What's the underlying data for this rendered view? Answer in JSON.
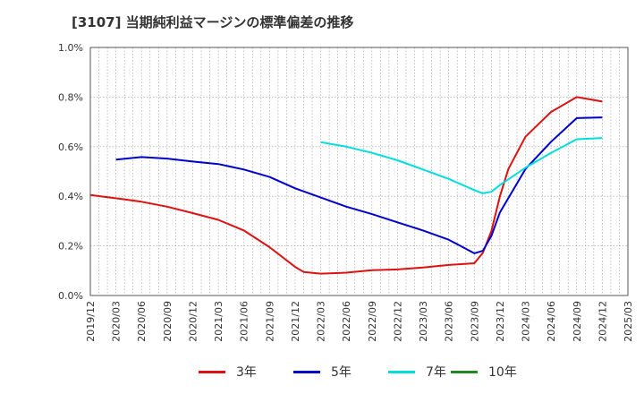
{
  "title": "[3107]  当期純利益マージンの標準偏差の推移",
  "chart_data": {
    "type": "line",
    "title": "[3107]  当期純利益マージンの標準偏差の推移",
    "xlabel": "",
    "ylabel": "",
    "ylim": [
      0,
      1.0
    ],
    "y_ticks": [
      "0.0%",
      "0.2%",
      "0.4%",
      "0.6%",
      "0.8%",
      "1.0%"
    ],
    "y_tick_values": [
      0,
      0.2,
      0.4,
      0.6,
      0.8,
      1.0
    ],
    "x_ticks": [
      "2019/12",
      "2020/03",
      "2020/06",
      "2020/09",
      "2020/12",
      "2021/03",
      "2021/06",
      "2021/09",
      "2021/12",
      "2022/03",
      "2022/06",
      "2022/09",
      "2022/12",
      "2023/03",
      "2023/06",
      "2023/09",
      "2023/12",
      "2024/03",
      "2024/06",
      "2024/09",
      "2024/12",
      "2025/03"
    ],
    "grid": true,
    "legend_position": "bottom",
    "series": [
      {
        "name": "3年",
        "color": "#dd1111",
        "points": [
          [
            "2019/12",
            0.405
          ],
          [
            "2020/03",
            0.392
          ],
          [
            "2020/06",
            0.378
          ],
          [
            "2020/09",
            0.358
          ],
          [
            "2020/12",
            0.332
          ],
          [
            "2021/03",
            0.305
          ],
          [
            "2021/06",
            0.262
          ],
          [
            "2021/09",
            0.195
          ],
          [
            "2021/12",
            0.115
          ],
          [
            "2022/01",
            0.095
          ],
          [
            "2022/03",
            0.088
          ],
          [
            "2022/06",
            0.092
          ],
          [
            "2022/09",
            0.102
          ],
          [
            "2022/12",
            0.105
          ],
          [
            "2023/03",
            0.113
          ],
          [
            "2023/06",
            0.123
          ],
          [
            "2023/09",
            0.13
          ],
          [
            "2023/10",
            0.172
          ],
          [
            "2023/11",
            0.26
          ],
          [
            "2023/12",
            0.4
          ],
          [
            "2024/01",
            0.51
          ],
          [
            "2024/03",
            0.64
          ],
          [
            "2024/06",
            0.74
          ],
          [
            "2024/09",
            0.8
          ],
          [
            "2024/12",
            0.782
          ]
        ]
      },
      {
        "name": "5年",
        "color": "#0000cc",
        "points": [
          [
            "2020/03",
            0.548
          ],
          [
            "2020/06",
            0.558
          ],
          [
            "2020/09",
            0.552
          ],
          [
            "2020/12",
            0.54
          ],
          [
            "2021/03",
            0.53
          ],
          [
            "2021/06",
            0.508
          ],
          [
            "2021/09",
            0.478
          ],
          [
            "2021/12",
            0.432
          ],
          [
            "2022/03",
            0.395
          ],
          [
            "2022/06",
            0.358
          ],
          [
            "2022/09",
            0.328
          ],
          [
            "2022/12",
            0.295
          ],
          [
            "2023/03",
            0.262
          ],
          [
            "2023/06",
            0.225
          ],
          [
            "2023/09",
            0.17
          ],
          [
            "2023/10",
            0.18
          ],
          [
            "2023/11",
            0.24
          ],
          [
            "2023/12",
            0.335
          ],
          [
            "2024/03",
            0.51
          ],
          [
            "2024/06",
            0.62
          ],
          [
            "2024/09",
            0.715
          ],
          [
            "2024/12",
            0.718
          ]
        ]
      },
      {
        "name": "7年",
        "color": "#00dddd",
        "points": [
          [
            "2022/03",
            0.618
          ],
          [
            "2022/06",
            0.6
          ],
          [
            "2022/09",
            0.575
          ],
          [
            "2022/12",
            0.545
          ],
          [
            "2023/03",
            0.508
          ],
          [
            "2023/06",
            0.47
          ],
          [
            "2023/09",
            0.425
          ],
          [
            "2023/10",
            0.412
          ],
          [
            "2023/11",
            0.418
          ],
          [
            "2023/12",
            0.445
          ],
          [
            "2024/03",
            0.515
          ],
          [
            "2024/06",
            0.575
          ],
          [
            "2024/09",
            0.63
          ],
          [
            "2024/12",
            0.635
          ]
        ]
      },
      {
        "name": "10年",
        "color": "#228822",
        "points": []
      }
    ]
  }
}
